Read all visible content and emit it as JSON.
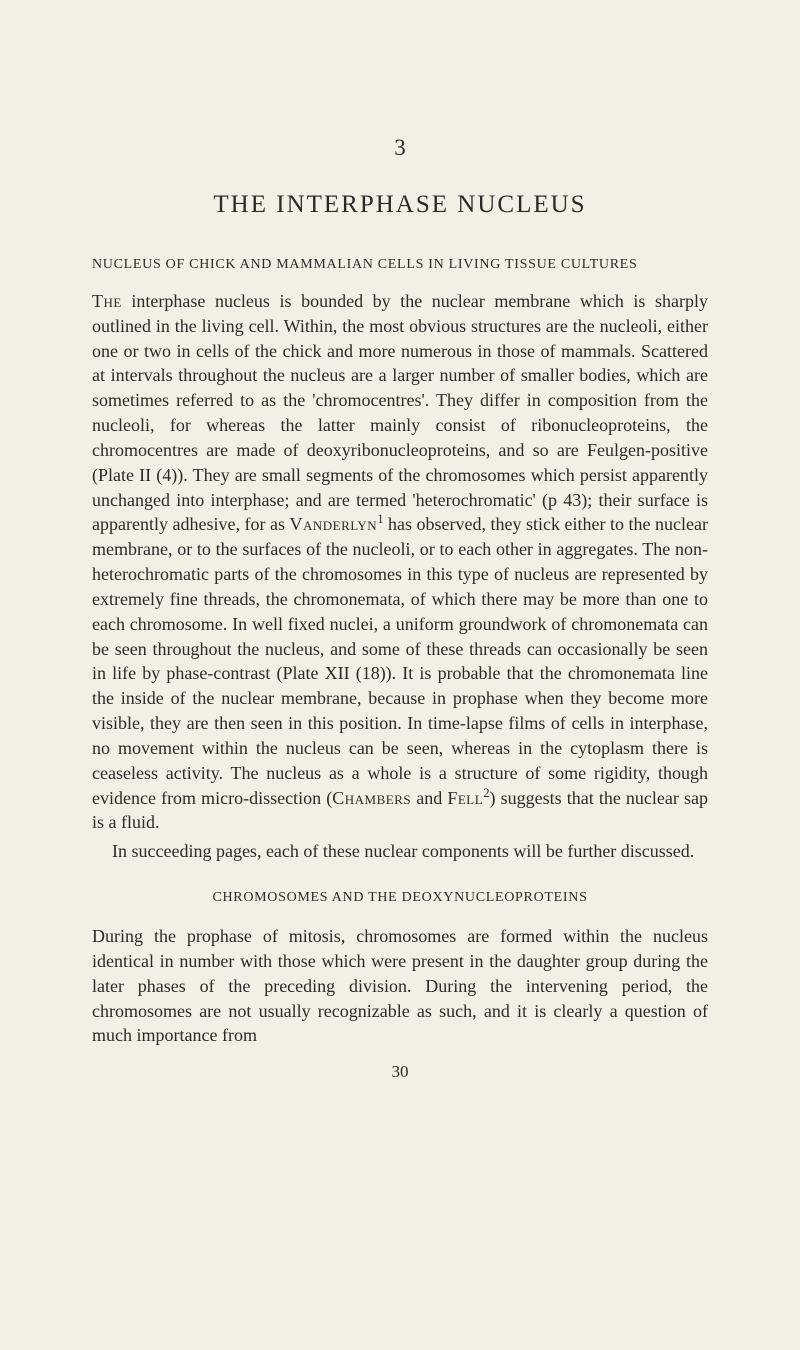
{
  "chapter_number": "3",
  "chapter_title": "THE INTERPHASE NUCLEUS",
  "section_heading": "NUCLEUS OF CHICK AND MAMMALIAN CELLS IN LIVING TISSUE CULTURES",
  "para1_lead": "The",
  "para1_text": " interphase nucleus is bounded by the nuclear membrane which is sharply outlined in the living cell. Within, the most obvious structures are the nucleoli, either one or two in cells of the chick and more numerous in those of mammals. Scattered at intervals throughout the nucleus are a larger number of smaller bodies, which are sometimes referred to as the 'chromocentres'. They differ in composition from the nucleoli, for whereas the latter mainly consist of ribonucleoproteins, the chromocentres are made of deoxyribonucleoproteins, and so are Feulgen-positive (Plate II (4)). They are small segments of the chromosomes which persist apparently unchanged into interphase; and are termed 'heterochromatic' (p 43); their surface is apparently adhesive, for as ",
  "para1_name1": "Vanderlyn",
  "para1_sup1": "1",
  "para1_text2": " has observed, they stick either to the nuclear membrane, or to the surfaces of the nucleoli, or to each other in aggregates. The non-heterochromatic parts of the chromosomes in this type of nucleus are represented by extremely fine threads, the chromonemata, of which there may be more than one to each chromosome. In well fixed nuclei, a uniform groundwork of chromonemata can be seen throughout the nucleus, and some of these threads can occasionally be seen in life by phase-contrast (Plate XII (18)). It is probable that the chromonemata line the inside of the nuclear membrane, because in prophase when they become more visible, they are then seen in this position. In time-lapse films of cells in interphase, no movement within the nucleus can be seen, whereas in the cytoplasm there is ceaseless activity. The nucleus as a whole is a structure of some rigidity, though evidence from micro-dissection (",
  "para1_name2": "Chambers",
  "para1_text3": " and ",
  "para1_name3": "Fell",
  "para1_sup2": "2",
  "para1_text4": ") suggests that the nuclear sap is a fluid.",
  "para2_text": "In succeeding pages, each of these nuclear components will be further discussed.",
  "sub_heading": "CHROMOSOMES AND THE DEOXYNUCLEOPROTEINS",
  "para3_text": "During the prophase of mitosis, chromosomes are formed within the nucleus identical in number with those which were present in the daughter group during the later phases of the preceding division. During the intervening period, the chromosomes are not usually recognizable as such, and it is clearly a question of much importance from",
  "page_number": "30",
  "colors": {
    "background": "#f2f0e4",
    "text": "#2a2a28"
  },
  "typography": {
    "body_fontsize": 18,
    "heading_fontsize": 25,
    "section_fontsize": 14,
    "line_height": 1.38
  }
}
